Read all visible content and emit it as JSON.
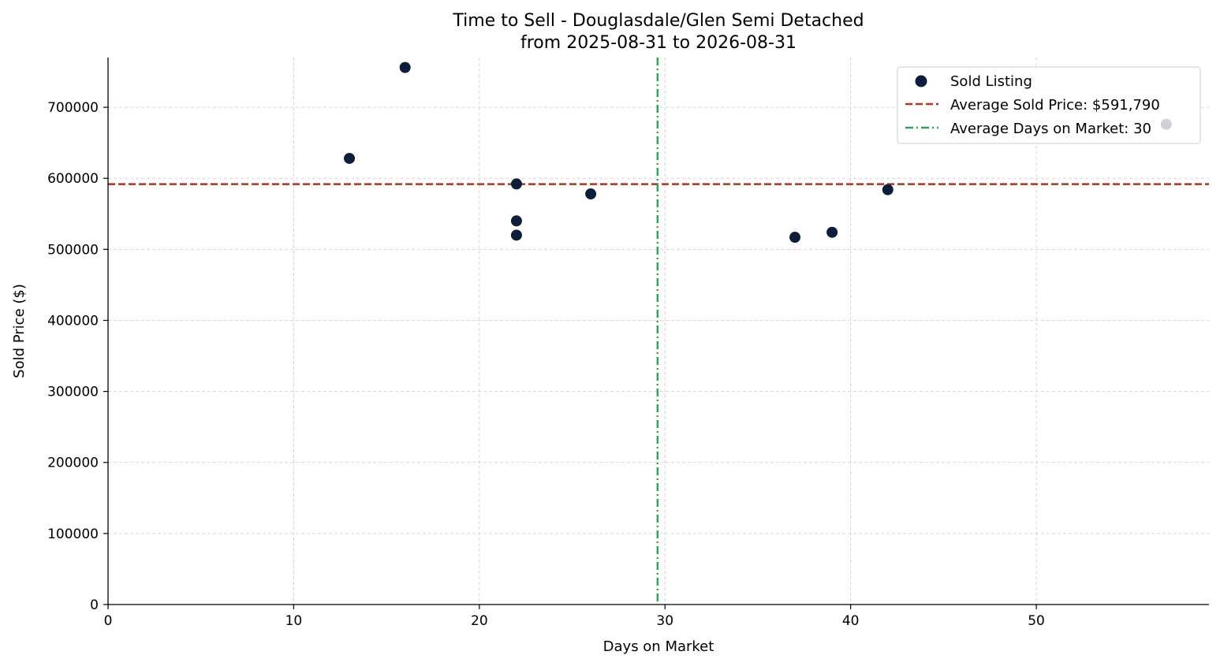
{
  "chart_data": {
    "type": "scatter",
    "title": "Time to Sell - Douglasdale/Glen Semi Detached",
    "subtitle": "from 2025-08-31 to 2026-08-31",
    "xlabel": "Days on Market",
    "ylabel": "Sold Price ($)",
    "xlim": [
      0,
      59.3
    ],
    "ylim": [
      0,
      770000
    ],
    "xticks": [
      0,
      10,
      20,
      30,
      40,
      50
    ],
    "yticks": [
      0,
      100000,
      200000,
      300000,
      400000,
      500000,
      600000,
      700000
    ],
    "grid": true,
    "legend_position": "top-right",
    "series": [
      {
        "name": "Sold Listing",
        "color": "#0b1f3a",
        "points": [
          {
            "x": 13,
            "y": 628000
          },
          {
            "x": 16,
            "y": 756000
          },
          {
            "x": 22,
            "y": 592000
          },
          {
            "x": 22,
            "y": 540000
          },
          {
            "x": 22,
            "y": 520000
          },
          {
            "x": 26,
            "y": 578000
          },
          {
            "x": 37,
            "y": 517000
          },
          {
            "x": 39,
            "y": 524000
          },
          {
            "x": 42,
            "y": 584000
          },
          {
            "x": 57,
            "y": 676000
          }
        ]
      }
    ],
    "reference_lines": [
      {
        "name": "Average Sold Price: $591,790",
        "orientation": "horizontal",
        "value": 591790,
        "color": "#b5321e",
        "style": "dashed"
      },
      {
        "name": "Average Days on Market: 30",
        "orientation": "vertical",
        "value": 29.6,
        "color": "#2ea35a",
        "style": "dashdot"
      }
    ]
  }
}
